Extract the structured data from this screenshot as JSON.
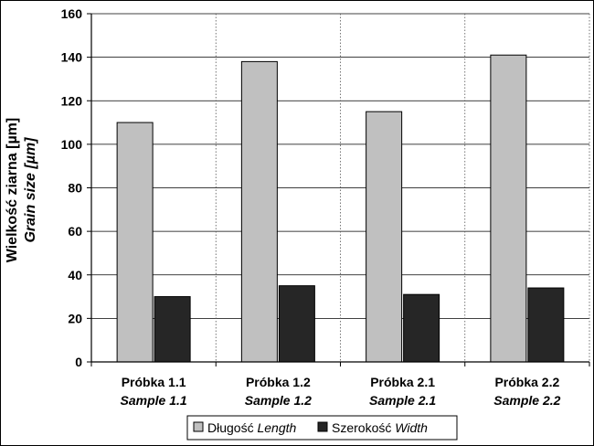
{
  "chart_data": {
    "type": "bar",
    "categories": [
      "Próbka 1.1",
      "Próbka 1.2",
      "Próbka 2.1",
      "Próbka 2.2"
    ],
    "categories_en": [
      "Sample 1.1",
      "Sample 1.2",
      "Sample 2.1",
      "Sample 2.2"
    ],
    "series": [
      {
        "name": "Długość",
        "name_en": "Length",
        "values": [
          110,
          138,
          115,
          141
        ],
        "color": "#c0c0c0"
      },
      {
        "name": "Szerokość",
        "name_en": "Width",
        "values": [
          30,
          35,
          31,
          34
        ],
        "color": "#262626"
      }
    ],
    "ylabel": "Wielkość ziarna [µm]",
    "ylabel_en": "Grain size [µm]",
    "xlabel": "",
    "ylim": [
      0,
      160
    ],
    "yticks": [
      0,
      20,
      40,
      60,
      80,
      100,
      120,
      140,
      160
    ],
    "grid": "horizontal solid, vertical dotted",
    "legend_position": "bottom-center"
  }
}
